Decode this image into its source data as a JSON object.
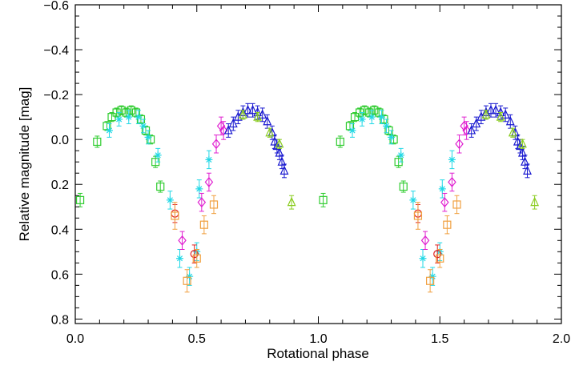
{
  "chart_data": {
    "type": "scatter",
    "title": "",
    "xlabel": "Rotational phase",
    "ylabel": "Relative magnitude [mag]",
    "xlim": [
      0.0,
      2.0
    ],
    "ylim": [
      0.82,
      -0.6
    ],
    "y_inverted": true,
    "x_ticks": [
      0.0,
      0.5,
      1.0,
      1.5,
      2.0
    ],
    "x_tick_labels": [
      "0.0",
      "0.5",
      "1.0",
      "1.5",
      "2.0"
    ],
    "y_ticks": [
      -0.6,
      -0.4,
      -0.2,
      0.0,
      0.2,
      0.4,
      0.6,
      0.8
    ],
    "y_tick_labels": [
      "−0.6",
      "−0.4",
      "−0.2",
      "0.0",
      "0.2",
      "0.4",
      "0.6",
      "0.8"
    ],
    "grid": false,
    "legend": "none",
    "series": [
      {
        "name": "green squares",
        "marker": "square",
        "color": "#2ecc2e",
        "points": [
          {
            "x": 0.02,
            "y": 0.27,
            "err": 0.03
          },
          {
            "x": 0.09,
            "y": 0.01,
            "err": 0.025
          },
          {
            "x": 0.13,
            "y": -0.06,
            "err": 0.02
          },
          {
            "x": 0.15,
            "y": -0.1,
            "err": 0.02
          },
          {
            "x": 0.17,
            "y": -0.12,
            "err": 0.02
          },
          {
            "x": 0.19,
            "y": -0.13,
            "err": 0.02
          },
          {
            "x": 0.21,
            "y": -0.12,
            "err": 0.02
          },
          {
            "x": 0.23,
            "y": -0.13,
            "err": 0.02
          },
          {
            "x": 0.25,
            "y": -0.12,
            "err": 0.02
          },
          {
            "x": 0.27,
            "y": -0.09,
            "err": 0.02
          },
          {
            "x": 0.29,
            "y": -0.04,
            "err": 0.02
          },
          {
            "x": 0.31,
            "y": 0.0,
            "err": 0.02
          },
          {
            "x": 0.33,
            "y": 0.1,
            "err": 0.025
          },
          {
            "x": 0.35,
            "y": 0.21,
            "err": 0.025
          }
        ]
      },
      {
        "name": "cyan asterisks",
        "marker": "asterisk",
        "color": "#22d8e6",
        "points": [
          {
            "x": 0.14,
            "y": -0.04,
            "err": 0.03
          },
          {
            "x": 0.18,
            "y": -0.09,
            "err": 0.03
          },
          {
            "x": 0.22,
            "y": -0.1,
            "err": 0.03
          },
          {
            "x": 0.26,
            "y": -0.1,
            "err": 0.03
          },
          {
            "x": 0.28,
            "y": -0.06,
            "err": 0.03
          },
          {
            "x": 0.3,
            "y": -0.01,
            "err": 0.03
          },
          {
            "x": 0.34,
            "y": 0.07,
            "err": 0.03
          },
          {
            "x": 0.39,
            "y": 0.27,
            "err": 0.04
          },
          {
            "x": 0.43,
            "y": 0.53,
            "err": 0.04
          },
          {
            "x": 0.47,
            "y": 0.61,
            "err": 0.04
          },
          {
            "x": 0.5,
            "y": 0.5,
            "err": 0.04
          },
          {
            "x": 0.51,
            "y": 0.22,
            "err": 0.04
          },
          {
            "x": 0.55,
            "y": 0.09,
            "err": 0.04
          }
        ]
      },
      {
        "name": "red circles",
        "marker": "circle",
        "color": "#e02020",
        "points": [
          {
            "x": 0.41,
            "y": 0.33,
            "err": 0.04
          },
          {
            "x": 0.49,
            "y": 0.51,
            "err": 0.04
          }
        ]
      },
      {
        "name": "orange squares",
        "marker": "square",
        "color": "#f0a040",
        "points": [
          {
            "x": 0.41,
            "y": 0.34,
            "err": 0.06
          },
          {
            "x": 0.46,
            "y": 0.63,
            "err": 0.05
          },
          {
            "x": 0.5,
            "y": 0.53,
            "err": 0.04
          },
          {
            "x": 0.53,
            "y": 0.38,
            "err": 0.04
          },
          {
            "x": 0.57,
            "y": 0.29,
            "err": 0.04
          }
        ]
      },
      {
        "name": "magenta diamonds",
        "marker": "diamond",
        "color": "#e020d0",
        "points": [
          {
            "x": 0.44,
            "y": 0.45,
            "err": 0.04
          },
          {
            "x": 0.52,
            "y": 0.28,
            "err": 0.04
          },
          {
            "x": 0.55,
            "y": 0.19,
            "err": 0.04
          },
          {
            "x": 0.58,
            "y": 0.02,
            "err": 0.04
          },
          {
            "x": 0.6,
            "y": -0.06,
            "err": 0.04
          },
          {
            "x": 0.61,
            "y": -0.04,
            "err": 0.04
          }
        ]
      },
      {
        "name": "blue triangles",
        "marker": "triangle",
        "color": "#1a1ad0",
        "points": [
          {
            "x": 0.63,
            "y": -0.04,
            "err": 0.03
          },
          {
            "x": 0.65,
            "y": -0.07,
            "err": 0.03
          },
          {
            "x": 0.67,
            "y": -0.1,
            "err": 0.03
          },
          {
            "x": 0.69,
            "y": -0.12,
            "err": 0.03
          },
          {
            "x": 0.71,
            "y": -0.13,
            "err": 0.03
          },
          {
            "x": 0.73,
            "y": -0.13,
            "err": 0.03
          },
          {
            "x": 0.75,
            "y": -0.12,
            "err": 0.03
          },
          {
            "x": 0.77,
            "y": -0.11,
            "err": 0.03
          },
          {
            "x": 0.79,
            "y": -0.08,
            "err": 0.03
          },
          {
            "x": 0.81,
            "y": -0.03,
            "err": 0.03
          },
          {
            "x": 0.82,
            "y": 0.01,
            "err": 0.03
          },
          {
            "x": 0.83,
            "y": 0.03,
            "err": 0.03
          },
          {
            "x": 0.84,
            "y": 0.06,
            "err": 0.03
          },
          {
            "x": 0.85,
            "y": 0.1,
            "err": 0.03
          },
          {
            "x": 0.86,
            "y": 0.14,
            "err": 0.03
          }
        ]
      },
      {
        "name": "lime triangles",
        "marker": "triangle",
        "color": "#8acc20",
        "points": [
          {
            "x": 0.69,
            "y": -0.11,
            "err": 0.02
          },
          {
            "x": 0.75,
            "y": -0.1,
            "err": 0.02
          },
          {
            "x": 0.8,
            "y": -0.03,
            "err": 0.02
          },
          {
            "x": 0.84,
            "y": 0.02,
            "err": 0.02
          },
          {
            "x": 0.89,
            "y": 0.28,
            "err": 0.03
          }
        ]
      }
    ]
  }
}
